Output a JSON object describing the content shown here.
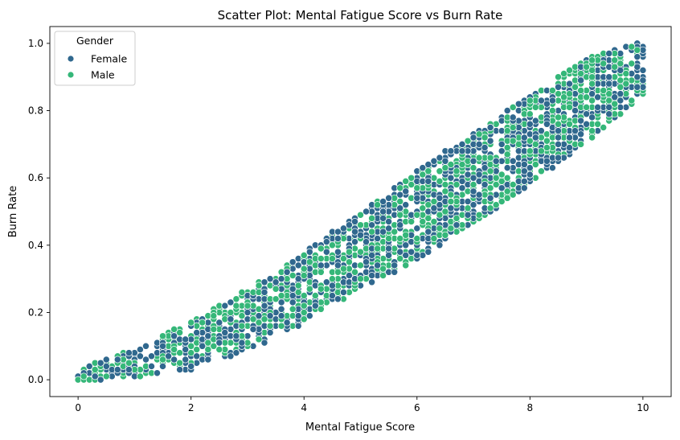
{
  "chart_data": {
    "type": "scatter",
    "title": "Scatter Plot: Mental Fatigue Score vs Burn Rate",
    "xlabel": "Mental Fatigue Score",
    "ylabel": "Burn Rate",
    "xlim": [
      -0.5,
      10.5
    ],
    "ylim": [
      -0.05,
      1.05
    ],
    "xticks": [
      0,
      2,
      4,
      6,
      8,
      10
    ],
    "yticks": [
      0.0,
      0.2,
      0.4,
      0.6,
      0.8,
      1.0
    ],
    "xtick_labels": [
      "0",
      "2",
      "4",
      "6",
      "8",
      "10"
    ],
    "ytick_labels": [
      "0.0",
      "0.2",
      "0.4",
      "0.6",
      "0.8",
      "1.0"
    ],
    "grid": false,
    "legend": {
      "title": "Gender",
      "placement": "top-left",
      "entries": [
        "Female",
        "Male"
      ]
    },
    "series": [
      {
        "name": "Female",
        "color": "#30688e",
        "band": {
          "x_start": 0.0,
          "x_end": 10.0,
          "upper": [
            [
              0,
              0.03
            ],
            [
              1,
              0.08
            ],
            [
              2,
              0.16
            ],
            [
              3,
              0.26
            ],
            [
              4,
              0.38
            ],
            [
              5,
              0.49
            ],
            [
              6,
              0.62
            ],
            [
              7,
              0.73
            ],
            [
              8,
              0.84
            ],
            [
              9,
              0.95
            ],
            [
              10,
              1.0
            ]
          ],
          "lower": [
            [
              0,
              0.0
            ],
            [
              1,
              0.01
            ],
            [
              2,
              0.03
            ],
            [
              3,
              0.09
            ],
            [
              4,
              0.17
            ],
            [
              5,
              0.27
            ],
            [
              6,
              0.36
            ],
            [
              7,
              0.47
            ],
            [
              8,
              0.58
            ],
            [
              9,
              0.71
            ],
            [
              10,
              0.86
            ]
          ]
        }
      },
      {
        "name": "Male",
        "color": "#35b779",
        "band": {
          "x_start": 0.0,
          "x_end": 10.0,
          "upper": [
            [
              0,
              0.03
            ],
            [
              1,
              0.09
            ],
            [
              2,
              0.17
            ],
            [
              3,
              0.27
            ],
            [
              4,
              0.37
            ],
            [
              5,
              0.49
            ],
            [
              6,
              0.61
            ],
            [
              7,
              0.73
            ],
            [
              8,
              0.84
            ],
            [
              9,
              0.95
            ],
            [
              10,
              1.0
            ]
          ],
          "lower": [
            [
              0,
              0.0
            ],
            [
              1,
              0.01
            ],
            [
              2,
              0.04
            ],
            [
              3,
              0.1
            ],
            [
              4,
              0.18
            ],
            [
              5,
              0.27
            ],
            [
              6,
              0.36
            ],
            [
              7,
              0.47
            ],
            [
              8,
              0.59
            ],
            [
              9,
              0.71
            ],
            [
              10,
              0.85
            ]
          ]
        }
      }
    ]
  }
}
